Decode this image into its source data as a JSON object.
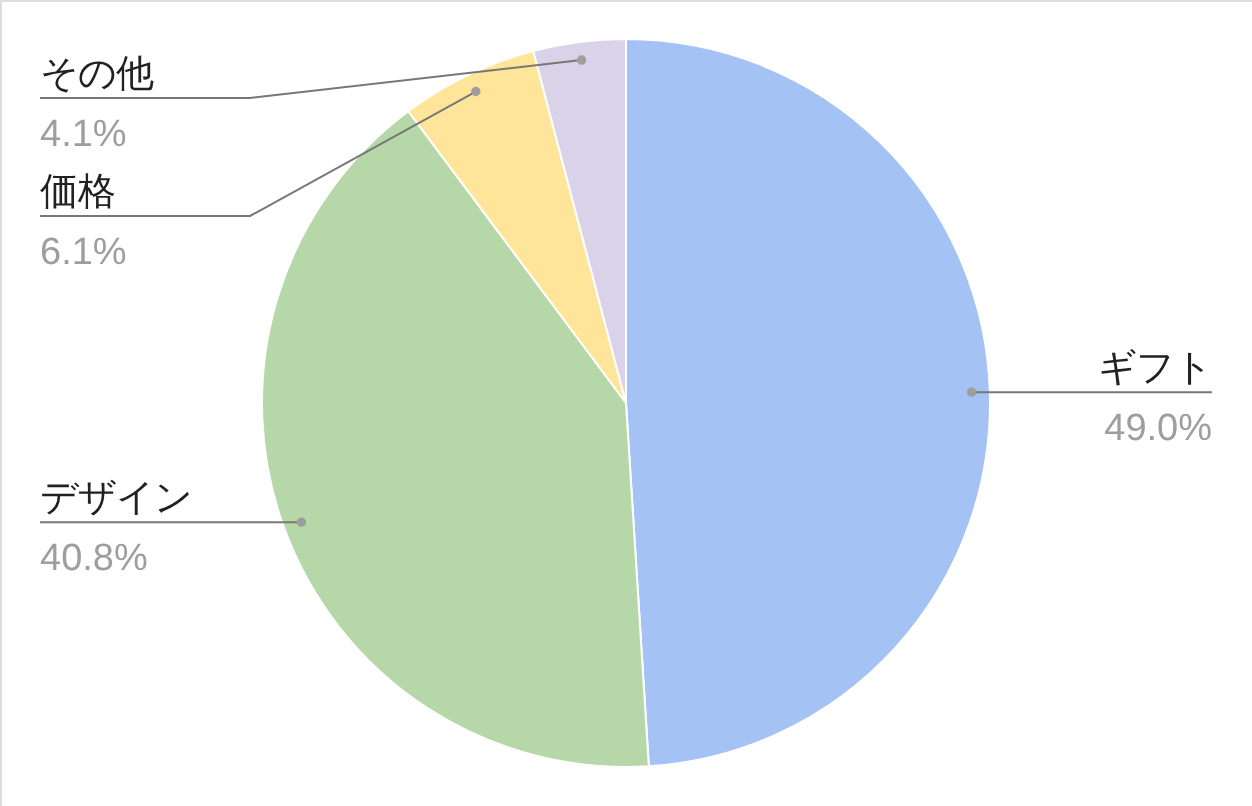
{
  "chart_data": {
    "type": "pie",
    "categories": [
      "ギフト",
      "デザイン",
      "価格",
      "その他"
    ],
    "values": [
      49.0,
      40.8,
      6.1,
      4.1
    ],
    "colors": [
      "#a4c2f4",
      "#b6d7a8",
      "#ffe599",
      "#d9d2e9"
    ],
    "value_labels": [
      "49.0%",
      "40.8%",
      "6.1%",
      "4.1%"
    ]
  }
}
